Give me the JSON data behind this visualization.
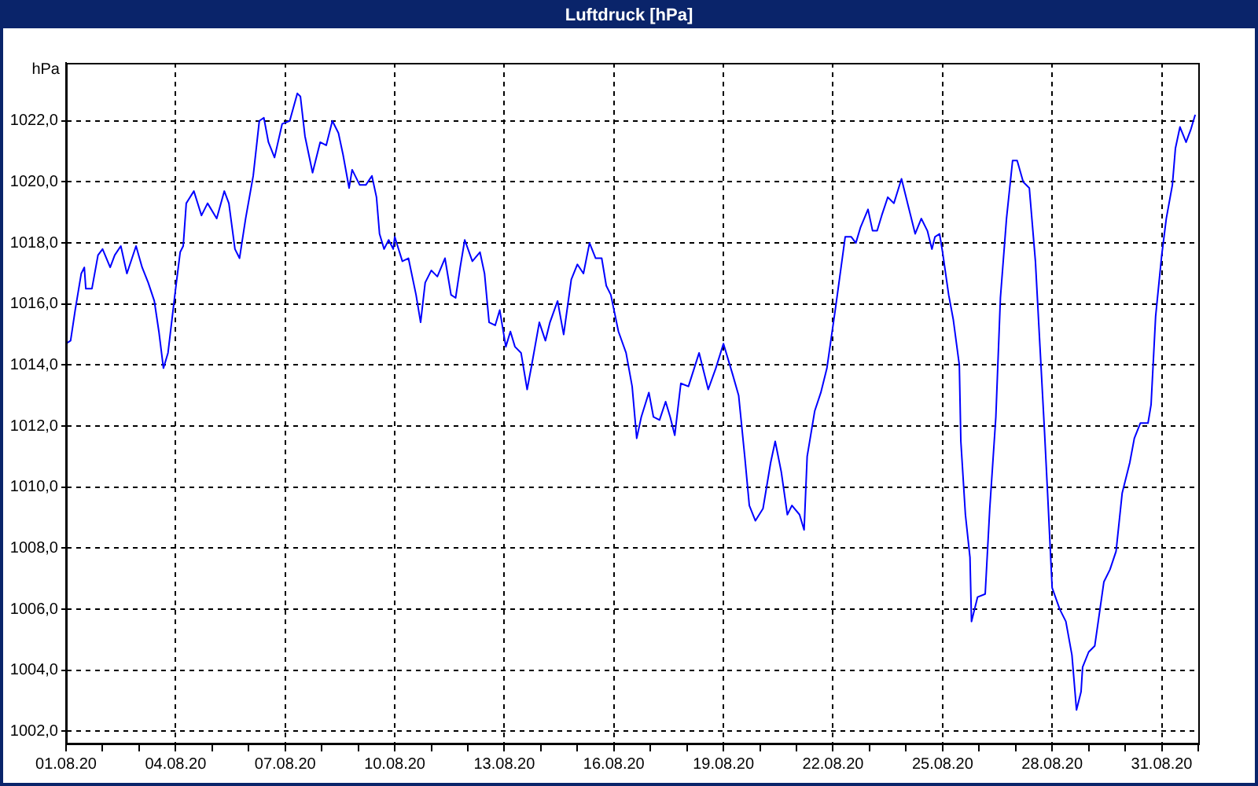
{
  "chart_data": {
    "type": "line",
    "title": "Luftdruck [hPa]",
    "ylabel": "hPa",
    "x": [
      "--08-01T00:00",
      "--08-01T03:00",
      "--08-01T06:00",
      "--08-01T10:00",
      "--08-01T12:00",
      "--08-01T13:00",
      "--08-01T17:00",
      "--08-01T21:00",
      "--08-02T00:00",
      "--08-02T05:00",
      "--08-02T08:00",
      "--08-02T12:00",
      "--08-02T16:00",
      "--08-02T22:00",
      "--08-03T02:00",
      "--08-03T06:00",
      "--08-03T10:00",
      "--08-03T13:00",
      "--08-03T16:00",
      "--08-03T19:00",
      "--08-04T00:00",
      "--08-04T03:00",
      "--08-04T05:00",
      "--08-04T07:00",
      "--08-04T12:00",
      "--08-04T17:00",
      "--08-04T21:00",
      "--08-05T03:00",
      "--08-05T08:00",
      "--08-05T11:00",
      "--08-05T15:00",
      "--08-05T18:00",
      "--08-05T22:00",
      "--08-06T03:00",
      "--08-06T07:00",
      "--08-06T10:00",
      "--08-06T13:00",
      "--08-06T17:00",
      "--08-06T22:00",
      "--08-07T03:00",
      "--08-07T08:00",
      "--08-07T10:00",
      "--08-07T13:00",
      "--08-07T18:00",
      "--08-07T23:00",
      "--08-08T03:00",
      "--08-08T07:00",
      "--08-08T11:00",
      "--08-08T14:00",
      "--08-08T18:00",
      "--08-08T20:00",
      "--08-09T01:00",
      "--08-09T05:00",
      "--08-09T09:00",
      "--08-09T12:00",
      "--08-09T14:00",
      "--08-09T17:00",
      "--08-09T20:00",
      "--08-09T23:00",
      "--08-10T00:00",
      "--08-10T05:00",
      "--08-10T09:00",
      "--08-10T14:00",
      "--08-10T17:00",
      "--08-10T20:00",
      "--08-11T00:00",
      "--08-11T04:00",
      "--08-11T09:00",
      "--08-11T13:00",
      "--08-11T16:00",
      "--08-11T19:00",
      "--08-11T22:00",
      "--08-12T03:00",
      "--08-12T08:00",
      "--08-12T11:00",
      "--08-12T14:00",
      "--08-12T18:00",
      "--08-12T21:00",
      "--08-13T01:00",
      "--08-13T04:00",
      "--08-13T07:00",
      "--08-13T11:00",
      "--08-13T15:00",
      "--08-13T18:00",
      "--08-13T23:00",
      "--08-14T03:00",
      "--08-14T06:00",
      "--08-14T11:00",
      "--08-14T15:00",
      "--08-14T20:00",
      "--08-15T00:00",
      "--08-15T04:00",
      "--08-15T08:00",
      "--08-15T12:00",
      "--08-15T16:00",
      "--08-15T19:00",
      "--08-15T22:00",
      "--08-16T03:00",
      "--08-16T08:00",
      "--08-16T12:00",
      "--08-16T15:00",
      "--08-16T18:00",
      "--08-16T23:00",
      "--08-17T02:00",
      "--08-17T06:00",
      "--08-17T10:00",
      "--08-17T13:00",
      "--08-17T16:00",
      "--08-17T20:00",
      "--08-18T01:00",
      "--08-18T08:00",
      "--08-18T14:00",
      "--08-18T19:00",
      "--08-19T00:00",
      "--08-19T06:00",
      "--08-19T10:00",
      "--08-19T14:00",
      "--08-19T17:00",
      "--08-19T21:00",
      "--08-20T02:00",
      "--08-20T07:00",
      "--08-20T10:00",
      "--08-20T14:00",
      "--08-20T18:00",
      "--08-20T21:00",
      "--08-21T02:00",
      "--08-21T05:00",
      "--08-21T07:00",
      "--08-21T12:00",
      "--08-21T16:00",
      "--08-21T20:00",
      "--08-22T02:00",
      "--08-22T08:00",
      "--08-22T12:00",
      "--08-22T15:00",
      "--08-22T18:00",
      "--08-22T23:00",
      "--08-23T02:00",
      "--08-23T05:00",
      "--08-23T08:00",
      "--08-23T12:00",
      "--08-23T16:00",
      "--08-23T21:00",
      "--08-24T01:00",
      "--08-24T06:00",
      "--08-24T10:00",
      "--08-24T14:00",
      "--08-24T17:00",
      "--08-24T19:00",
      "--08-24T22:00",
      "--08-25T00:00",
      "--08-25T04:00",
      "--08-25T07:00",
      "--08-25T11:00",
      "--08-25T12:00",
      "--08-25T15:00",
      "--08-25T18:00",
      "--08-25T19:00",
      "--08-25T23:00",
      "--08-26T04:00",
      "--08-26T07:00",
      "--08-26T11:00",
      "--08-26T14:00",
      "--08-26T18:00",
      "--08-26T22:00",
      "--08-27T01:00",
      "--08-27T05:00",
      "--08-27T09:00",
      "--08-27T13:00",
      "--08-27T16:00",
      "--08-27T19:00",
      "--08-27T21:00",
      "--08-28T00:00",
      "--08-28T05:00",
      "--08-28T09:00",
      "--08-28T13:00",
      "--08-28T16:00",
      "--08-28T19:00",
      "--08-28T20:00",
      "--08-29T00:00",
      "--08-29T04:00",
      "--08-29T10:00",
      "--08-29T14:00",
      "--08-29T18:00",
      "--08-29T22:00",
      "--08-30T03:00",
      "--08-30T06:00",
      "--08-30T10:00",
      "--08-30T15:00",
      "--08-30T17:00",
      "--08-30T20:00",
      "--08-31T00:00",
      "--08-31T03:00",
      "--08-31T07:00",
      "--08-31T09:00",
      "--08-31T12:00",
      "--08-31T16:00",
      "--08-31T19:00",
      "--08-31T22:00"
    ],
    "values": [
      1014.7,
      1014.8,
      1015.8,
      1017.0,
      1017.2,
      1016.5,
      1016.5,
      1017.6,
      1017.8,
      1017.2,
      1017.6,
      1017.9,
      1017.0,
      1017.9,
      1017.2,
      1016.7,
      1016.1,
      1015.1,
      1013.9,
      1014.4,
      1016.5,
      1017.7,
      1017.9,
      1019.3,
      1019.7,
      1018.9,
      1019.3,
      1018.8,
      1019.7,
      1019.3,
      1017.8,
      1017.5,
      1018.8,
      1020.2,
      1022.0,
      1022.1,
      1021.3,
      1020.8,
      1021.9,
      1022.0,
      1022.9,
      1022.8,
      1021.5,
      1020.3,
      1021.3,
      1021.2,
      1022.0,
      1021.6,
      1020.9,
      1019.8,
      1020.4,
      1019.9,
      1019.9,
      1020.2,
      1019.5,
      1018.3,
      1017.8,
      1018.1,
      1017.8,
      1018.2,
      1017.4,
      1017.5,
      1016.3,
      1015.4,
      1016.7,
      1017.1,
      1016.9,
      1017.5,
      1016.3,
      1016.2,
      1017.2,
      1018.1,
      1017.4,
      1017.7,
      1017.0,
      1015.4,
      1015.3,
      1015.8,
      1014.6,
      1015.1,
      1014.6,
      1014.4,
      1013.2,
      1014.0,
      1015.4,
      1014.8,
      1015.4,
      1016.1,
      1015.0,
      1016.8,
      1017.3,
      1017.0,
      1018.0,
      1017.5,
      1017.5,
      1016.6,
      1016.3,
      1015.1,
      1014.4,
      1013.3,
      1011.6,
      1012.3,
      1013.1,
      1012.3,
      1012.2,
      1012.8,
      1012.3,
      1011.7,
      1013.4,
      1013.3,
      1014.4,
      1013.2,
      1013.9,
      1014.7,
      1013.7,
      1013.0,
      1011.0,
      1009.4,
      1008.9,
      1009.3,
      1010.8,
      1011.5,
      1010.5,
      1009.1,
      1009.4,
      1009.1,
      1008.6,
      1011.0,
      1012.5,
      1013.1,
      1013.9,
      1016.0,
      1018.2,
      1018.2,
      1018.0,
      1018.5,
      1019.1,
      1018.4,
      1018.4,
      1018.9,
      1019.5,
      1019.3,
      1020.1,
      1019.3,
      1018.3,
      1018.8,
      1018.4,
      1017.8,
      1018.2,
      1018.3,
      1017.7,
      1016.3,
      1015.5,
      1014.0,
      1011.5,
      1009.1,
      1007.7,
      1005.6,
      1006.4,
      1006.5,
      1009.3,
      1012.3,
      1016.2,
      1018.8,
      1020.7,
      1020.7,
      1020.0,
      1019.8,
      1017.4,
      1014.6,
      1011.8,
      1009.8,
      1006.7,
      1006.0,
      1005.6,
      1004.5,
      1002.7,
      1003.3,
      1004.1,
      1004.6,
      1004.8,
      1006.9,
      1007.3,
      1007.9,
      1009.8,
      1010.8,
      1011.6,
      1012.1,
      1012.1,
      1012.7,
      1015.6,
      1017.6,
      1018.8,
      1019.9,
      1021.1,
      1021.8,
      1021.3,
      1021.7,
      1022.2
    ],
    "color": "#0000ff",
    "marker": "none",
    "line_style": "solid",
    "grid": true,
    "legend": false,
    "xlim": [
      "--08-01",
      "--09-01"
    ],
    "xticks": [
      {
        "value": "--08-01",
        "label": "01.08.20"
      },
      {
        "value": "--08-02",
        "label": null
      },
      {
        "value": "--08-03",
        "label": null
      },
      {
        "value": "--08-04",
        "label": "04.08.20"
      },
      {
        "value": "--08-05",
        "label": null
      },
      {
        "value": "--08-06",
        "label": null
      },
      {
        "value": "--08-07",
        "label": "07.08.20"
      },
      {
        "value": "--08-08",
        "label": null
      },
      {
        "value": "--08-09",
        "label": null
      },
      {
        "value": "--08-10",
        "label": "10.08.20"
      },
      {
        "value": "--08-11",
        "label": null
      },
      {
        "value": "--08-12",
        "label": null
      },
      {
        "value": "--08-13",
        "label": "13.08.20"
      },
      {
        "value": "--08-14",
        "label": null
      },
      {
        "value": "--08-15",
        "label": null
      },
      {
        "value": "--08-16",
        "label": "16.08.20"
      },
      {
        "value": "--08-17",
        "label": null
      },
      {
        "value": "--08-18",
        "label": null
      },
      {
        "value": "--08-19",
        "label": "19.08.20"
      },
      {
        "value": "--08-20",
        "label": null
      },
      {
        "value": "--08-21",
        "label": null
      },
      {
        "value": "--08-22",
        "label": "22.08.20"
      },
      {
        "value": "--08-23",
        "label": null
      },
      {
        "value": "--08-24",
        "label": null
      },
      {
        "value": "--08-25",
        "label": "25.08.20"
      },
      {
        "value": "--08-26",
        "label": null
      },
      {
        "value": "--08-27",
        "label": null
      },
      {
        "value": "--08-28",
        "label": "28.08.20"
      },
      {
        "value": "--08-29",
        "label": null
      },
      {
        "value": "--08-30",
        "label": null
      },
      {
        "value": "--08-31",
        "label": "31.08.20"
      },
      {
        "value": "--09-01",
        "label": null
      }
    ],
    "ylim": [
      1001.6,
      1023.9
    ],
    "yticks": [
      {
        "value": 1002,
        "label": "1002,0"
      },
      {
        "value": 1004,
        "label": "1004,0"
      },
      {
        "value": 1006,
        "label": "1006,0"
      },
      {
        "value": 1008,
        "label": "1008,0"
      },
      {
        "value": 1010,
        "label": "1010,0"
      },
      {
        "value": 1012,
        "label": "1012,0"
      },
      {
        "value": 1014,
        "label": "1014,0"
      },
      {
        "value": 1016,
        "label": "1016,0"
      },
      {
        "value": 1018,
        "label": "1018,0"
      },
      {
        "value": 1020,
        "label": "1020,0"
      },
      {
        "value": 1022,
        "label": "1022,0"
      }
    ]
  }
}
